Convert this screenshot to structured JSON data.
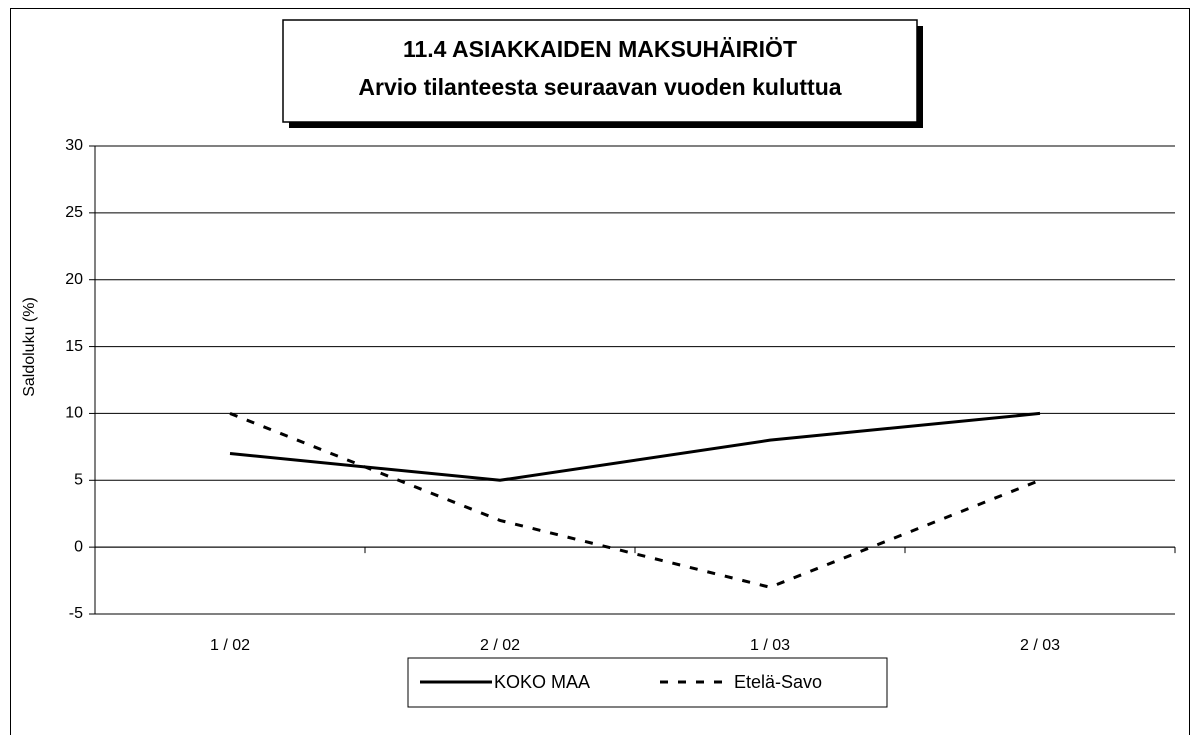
{
  "chart_data": {
    "type": "line",
    "title": "11.4 ASIAKKAIDEN MAKSUHÄIRIÖT",
    "subtitle": "Arvio tilanteesta seuraavan vuoden kuluttua",
    "ylabel": "Saldoluku (%)",
    "categories": [
      "1 / 02",
      "2 / 02",
      "1 / 03",
      "2 / 03"
    ],
    "series": [
      {
        "name": "KOKO MAA",
        "color": "#000000",
        "dash": "solid",
        "values": [
          7,
          5,
          8,
          10
        ]
      },
      {
        "name": "Etelä-Savo",
        "color": "#000000",
        "dash": "dashed",
        "values": [
          10,
          2,
          -3,
          5
        ]
      }
    ],
    "ylim": [
      -5,
      30
    ],
    "yticks": [
      -5,
      0,
      5,
      10,
      15,
      20,
      25,
      30
    ],
    "grid": true,
    "legend": "bottom"
  }
}
